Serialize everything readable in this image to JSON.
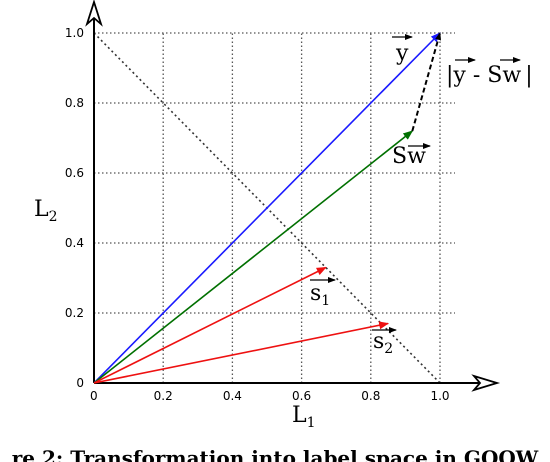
{
  "chart_data": {
    "type": "vector-diagram",
    "xlabel": {
      "base": "L",
      "sub": "1"
    },
    "ylabel": {
      "base": "L",
      "sub": "2"
    },
    "xlim": [
      0,
      1.0
    ],
    "ylim": [
      0,
      1.0
    ],
    "xticks": [
      "0",
      "0.2",
      "0.4",
      "0.6",
      "0.8",
      "1.0"
    ],
    "yticks": [
      "0",
      "0.2",
      "0.4",
      "0.6",
      "0.8",
      "1.0"
    ],
    "grid": "dotted",
    "vectors": [
      {
        "name": "y",
        "from": [
          0,
          0
        ],
        "to": [
          1.0,
          1.0
        ],
        "color": "#1a1aff",
        "style": "solid"
      },
      {
        "name": "Sw",
        "from": [
          0,
          0
        ],
        "to": [
          0.92,
          0.72
        ],
        "color": "#007000",
        "style": "solid"
      },
      {
        "name": "s1",
        "from": [
          0,
          0
        ],
        "to": [
          0.67,
          0.33
        ],
        "color": "#ee1111",
        "style": "solid"
      },
      {
        "name": "s2",
        "from": [
          0,
          0
        ],
        "to": [
          0.85,
          0.17
        ],
        "color": "#ee1111",
        "style": "solid"
      },
      {
        "name": "y - Sw",
        "from": [
          0.92,
          0.72
        ],
        "to": [
          1.0,
          1.0
        ],
        "color": "#000000",
        "style": "dashed"
      }
    ],
    "diagonal": {
      "from": [
        0,
        1.0
      ],
      "to": [
        1.0,
        0
      ],
      "style": "dotted"
    },
    "annotations": {
      "y": "y",
      "diff_open": "|",
      "diff_y": "y",
      "diff_minus": " - ",
      "diff_S": "S",
      "diff_w": "w",
      "diff_close": "|",
      "Sw_S": "S",
      "Sw_w": "w",
      "s1_base": "s",
      "s1_sub": "1",
      "s2_base": "s",
      "s2_sub": "2"
    }
  },
  "caption": "re 2: Transformation into label space in GOOW"
}
